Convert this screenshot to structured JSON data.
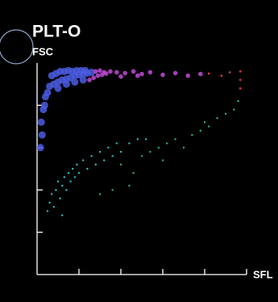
{
  "chart_data": {
    "type": "scatter",
    "title": "PLT-O",
    "ylabel": "FSC",
    "xlabel": "SFL",
    "xlim": [
      0,
      5
    ],
    "ylim": [
      0,
      5
    ],
    "xticks": [
      1,
      2,
      3,
      4,
      5
    ],
    "yticks": [
      1,
      2,
      3,
      4
    ],
    "series": [
      {
        "color": "#4a5ce0",
        "x": [
          0.3,
          0.4,
          0.5,
          0.6,
          0.7,
          0.8,
          0.9,
          1.0,
          1.1,
          1.2,
          1.3,
          0.35,
          0.45,
          0.55,
          0.65,
          0.75,
          0.85,
          0.95,
          1.05,
          1.15,
          0.5,
          0.7,
          0.9,
          1.1,
          0.2,
          0.15,
          0.1,
          0.12,
          0.08,
          0.18,
          0.25
        ],
        "values": [
          4.45,
          4.5,
          4.55,
          4.6,
          4.62,
          4.65,
          4.7,
          4.72,
          4.74,
          4.76,
          4.78,
          4.7,
          4.75,
          4.8,
          4.8,
          4.82,
          4.8,
          4.82,
          4.82,
          4.82,
          4.4,
          4.5,
          4.55,
          4.6,
          4.2,
          3.9,
          3.6,
          3.3,
          3.0,
          4.0,
          4.3
        ]
      },
      {
        "color": "#c04ad8",
        "x": [
          1.25,
          1.35,
          1.45,
          1.55,
          1.65,
          1.4,
          1.5,
          1.6,
          1.75,
          1.9,
          2.1,
          2.3,
          2.5,
          2.7,
          3.0,
          3.3,
          3.6,
          3.9,
          2.0,
          2.4
        ],
        "values": [
          4.6,
          4.65,
          4.7,
          4.72,
          4.75,
          4.8,
          4.82,
          4.78,
          4.8,
          4.78,
          4.76,
          4.8,
          4.74,
          4.78,
          4.72,
          4.76,
          4.7,
          4.74,
          4.68,
          4.7
        ]
      },
      {
        "color": "#e03a4a",
        "x": [
          4.1,
          4.4,
          4.6,
          4.85,
          4.85,
          4.85
        ],
        "values": [
          4.75,
          4.7,
          4.78,
          4.8,
          4.6,
          4.4
        ]
      },
      {
        "color": "#2cc4c4",
        "x": [
          0.25,
          0.3,
          0.35,
          0.4,
          0.45,
          0.5,
          0.55,
          0.6,
          0.65,
          0.7,
          0.75,
          0.8,
          0.85,
          0.9,
          0.95,
          1.0,
          1.1,
          1.2,
          1.3,
          1.4,
          1.5,
          1.6,
          1.7,
          1.8,
          1.9,
          2.0,
          2.2,
          2.4,
          2.6,
          0.6
        ],
        "values": [
          1.5,
          1.7,
          1.9,
          1.6,
          2.0,
          2.2,
          1.8,
          2.1,
          2.3,
          2.0,
          2.4,
          2.2,
          2.5,
          2.3,
          2.6,
          2.4,
          2.7,
          2.5,
          2.8,
          2.6,
          2.9,
          2.7,
          3.0,
          2.8,
          3.1,
          2.9,
          3.1,
          3.2,
          3.2,
          1.4
        ]
      },
      {
        "color": "#2cb86a",
        "x": [
          1.5,
          1.8,
          2.0,
          2.3,
          2.5,
          2.7,
          2.9,
          3.1,
          3.3,
          3.5,
          3.7,
          3.9,
          4.1,
          4.3,
          4.5,
          4.7,
          4.8,
          2.2,
          3.0,
          4.0
        ],
        "values": [
          1.9,
          2.0,
          2.6,
          2.4,
          2.8,
          2.9,
          3.0,
          3.1,
          3.2,
          3.0,
          3.3,
          3.4,
          3.5,
          3.7,
          3.8,
          3.9,
          4.1,
          2.1,
          2.7,
          3.6
        ]
      }
    ]
  }
}
